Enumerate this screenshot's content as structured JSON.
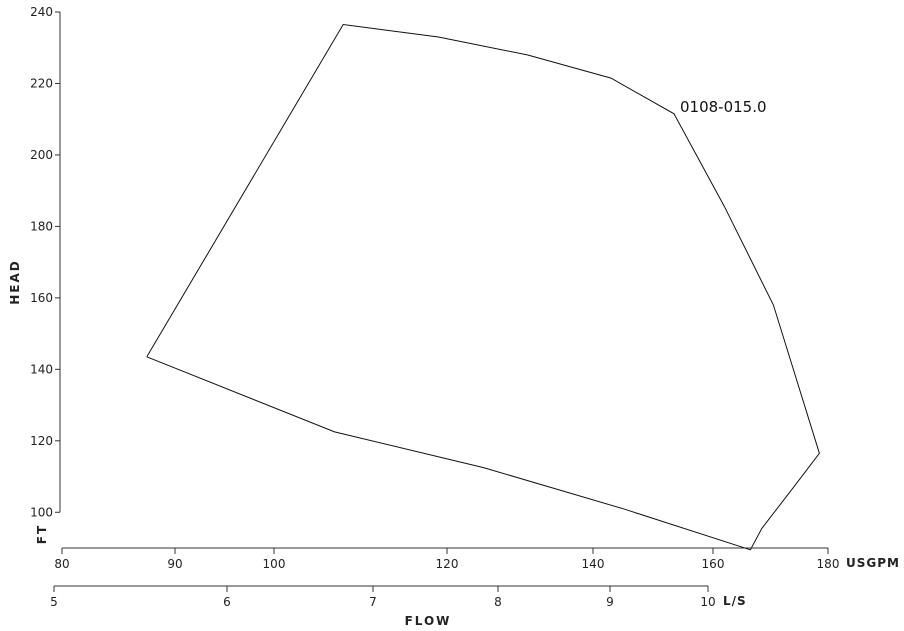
{
  "chart_data": {
    "type": "line",
    "title": "",
    "ylabel": "HEAD",
    "yunit": "FT",
    "xlabel": "FLOW",
    "y_axis": {
      "unit": "FT",
      "range": [
        90,
        240
      ],
      "ticks": [
        100,
        120,
        140,
        160,
        180,
        200,
        220,
        240
      ]
    },
    "x_axis_primary": {
      "unit": "USGPM",
      "range": [
        80,
        180
      ],
      "ticks": [
        80,
        90,
        100,
        120,
        140,
        160,
        180
      ]
    },
    "x_axis_secondary": {
      "unit": "L/S",
      "range": [
        5,
        10
      ],
      "ticks": [
        5,
        6,
        7,
        8,
        9,
        10
      ]
    },
    "grid": false,
    "series": [
      {
        "name": "0108-015.0",
        "x": [
          87.5,
          108,
          119,
          131,
          143,
          153.5,
          162,
          170.5,
          178.5,
          174,
          168.5,
          166.5,
          145,
          125,
          107,
          87.5
        ],
        "y": [
          143.5,
          236.5,
          233.0,
          228.0,
          221.5,
          211.5,
          185.5,
          158.0,
          116.5,
          107.0,
          95.5,
          89.5,
          101.0,
          112.5,
          122.5,
          143.5
        ]
      }
    ]
  }
}
